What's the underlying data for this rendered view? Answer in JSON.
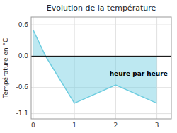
{
  "chart_data": {
    "type": "area",
    "title": "Evolution de la température",
    "y_label": "Température en °C",
    "x": [
      0,
      0.3,
      1,
      2,
      3
    ],
    "values": [
      0.5,
      0.0,
      -0.9,
      -0.55,
      -0.9
    ],
    "color": "#6dcde0",
    "xlim": [
      -0.05,
      3.35
    ],
    "ylim": [
      -1.2,
      0.75
    ],
    "xticks": [
      0,
      1,
      2,
      3
    ],
    "yticks": [
      -1.1,
      -0.6,
      {
        "value": 0,
        "label": "0.0"
      },
      0.6
    ],
    "grid": true,
    "annotations": [
      {
        "text": "heure par heure",
        "x": 1.85,
        "y": -0.38
      }
    ]
  }
}
